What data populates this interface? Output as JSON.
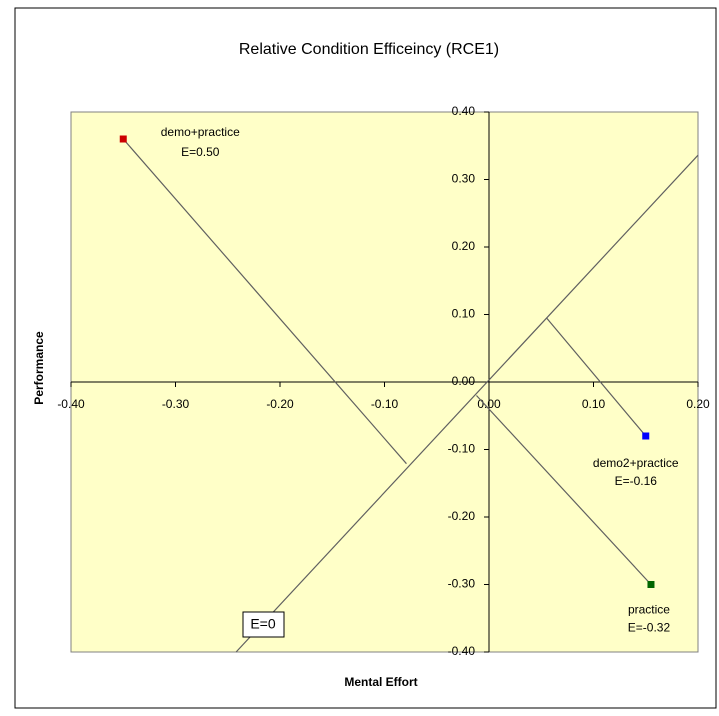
{
  "chart_data": {
    "type": "scatter",
    "title": "Relative Condition Efficeincy (RCE1)",
    "x_label": "Mental Effort",
    "y_label": "Performance",
    "xlim": [
      -0.4,
      0.2
    ],
    "ylim": [
      -0.4,
      0.4
    ],
    "xticks": [
      {
        "value": -0.4,
        "label": "-0.40"
      },
      {
        "value": -0.3,
        "label": "-0.30"
      },
      {
        "value": -0.2,
        "label": "-0.20"
      },
      {
        "value": -0.1,
        "label": "-0.10"
      },
      {
        "value": 0,
        "label": "0.00"
      },
      {
        "value": 0.1,
        "label": "0.10"
      },
      {
        "value": 0.2,
        "label": "0.20"
      }
    ],
    "yticks": [
      {
        "value": 0.4,
        "label": "0.40"
      },
      {
        "value": 0.3,
        "label": "0.30"
      },
      {
        "value": 0.2,
        "label": "0.20"
      },
      {
        "value": 0.1,
        "label": "0.10"
      },
      {
        "value": 0,
        "label": "0.00"
      },
      {
        "value": -0.1,
        "label": "-0.10"
      },
      {
        "value": -0.2,
        "label": "-0.20"
      },
      {
        "value": -0.3,
        "label": "-0.30"
      },
      {
        "value": -0.4,
        "label": "-0.40"
      }
    ],
    "points": [
      {
        "label": "demo+practice",
        "efficiency": "E=0.50",
        "x": -0.35,
        "y": 0.36,
        "color": "#cc0000"
      },
      {
        "label": "demo2+practice",
        "efficiency": "E=-0.16",
        "x": 0.15,
        "y": -0.08,
        "color": "#0000ff"
      },
      {
        "label": "practice",
        "efficiency": "E=-0.32",
        "x": 0.155,
        "y": -0.3,
        "color": "#006600"
      }
    ],
    "lines": [
      {
        "x": [
          -0.242,
          0.2
        ],
        "y": [
          -0.4,
          0.336
        ]
      },
      {
        "x": [
          -0.35,
          -0.079
        ],
        "y": [
          0.36,
          -0.121
        ]
      },
      {
        "x": [
          0.15,
          0.055
        ],
        "y": [
          -0.08,
          0.095
        ]
      },
      {
        "x": [
          0.155,
          -0.012
        ],
        "y": [
          -0.3,
          -0.02
        ]
      }
    ],
    "line_label": "E=0",
    "plot_color": "#ffffc8"
  }
}
